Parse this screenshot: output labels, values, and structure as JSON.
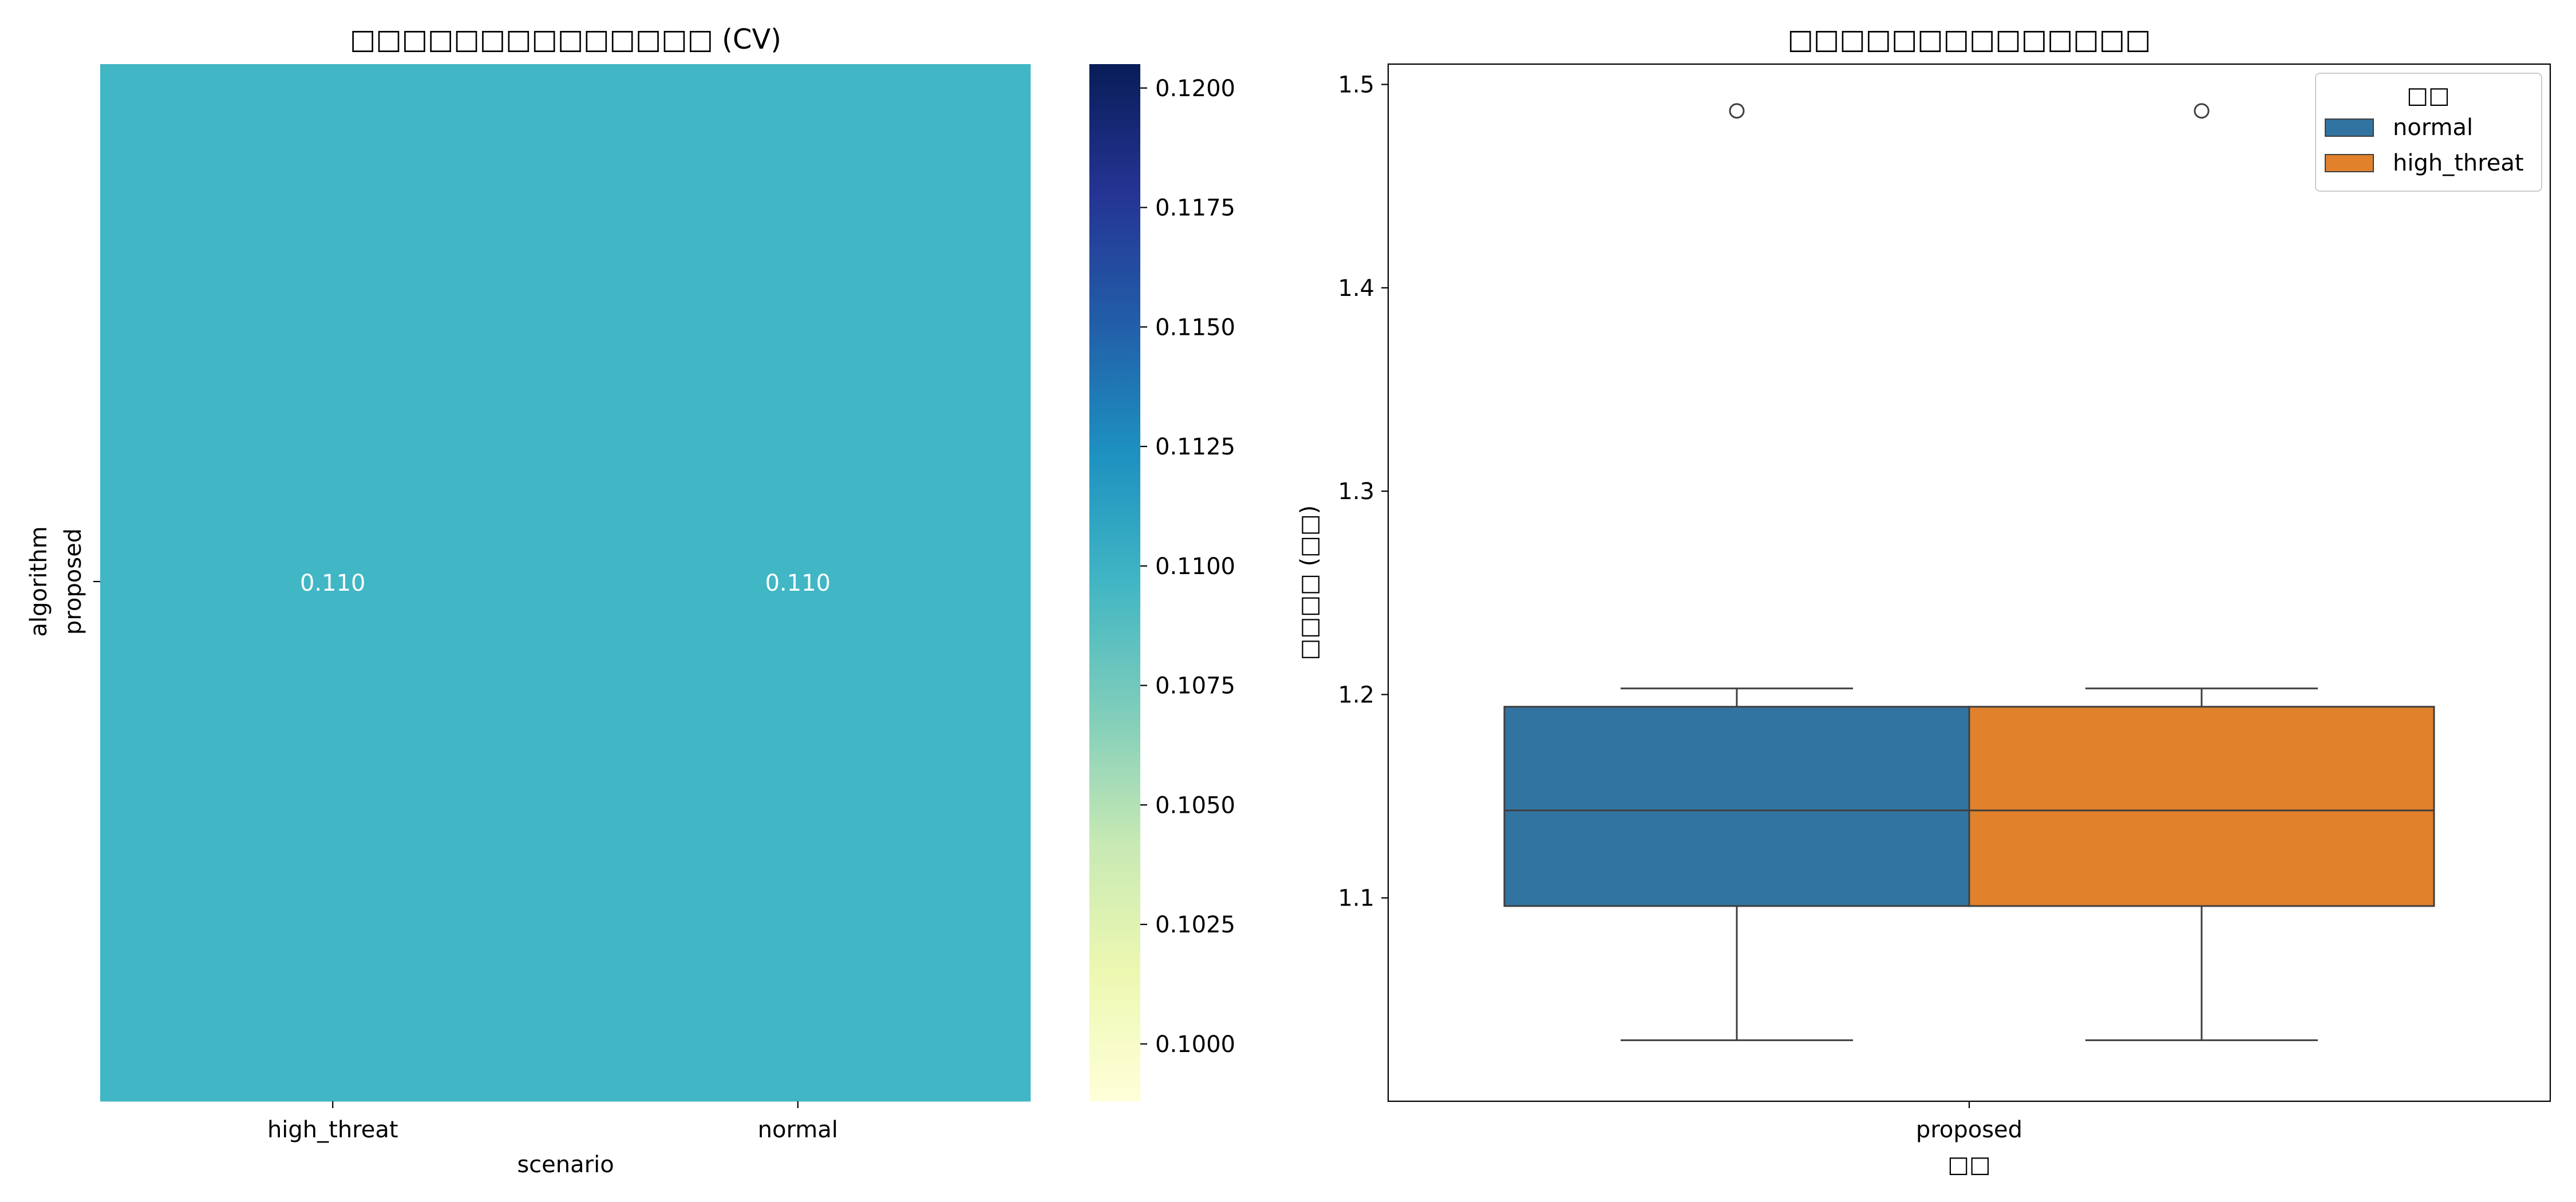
{
  "chart_data": [
    {
      "type": "heatmap",
      "title": "□□□□□□□□□□□□□□ (CV)",
      "xlabel": "scenario",
      "ylabel": "algorithm",
      "x_categories": [
        "high_threat",
        "normal"
      ],
      "y_categories": [
        "proposed"
      ],
      "values": [
        [
          0.11,
          0.11
        ]
      ],
      "annotations": [
        "0.110",
        "0.110"
      ],
      "colormap": "YlGnBu",
      "colorbar": {
        "range": [
          0.0988,
          0.1205
        ],
        "ticks": [
          0.1,
          0.1025,
          0.105,
          0.1075,
          0.11,
          0.1125,
          0.115,
          0.1175,
          0.12
        ],
        "tick_labels": [
          "0.1000",
          "0.1025",
          "0.1050",
          "0.1075",
          "0.1100",
          "0.1125",
          "0.1150",
          "0.1175",
          "0.1200"
        ]
      },
      "cell_color": "#41b6c4"
    },
    {
      "type": "box",
      "title": "□□□□□□□□□□□□□□",
      "xlabel": "□□",
      "ylabel": "□□□□ (□□)",
      "categories": [
        "proposed"
      ],
      "ylim": [
        1.0,
        1.51
      ],
      "yticks": [
        1.1,
        1.2,
        1.3,
        1.4,
        1.5
      ],
      "ytick_labels": [
        "1.1",
        "1.2",
        "1.3",
        "1.4",
        "1.5"
      ],
      "legend": {
        "title": "□□",
        "position": "top-right"
      },
      "series": [
        {
          "name": "normal",
          "color": "#3274a1",
          "stats": {
            "whisker_low": 1.03,
            "q1": 1.096,
            "median": 1.143,
            "q3": 1.194,
            "whisker_high": 1.203
          },
          "outliers": [
            1.487
          ]
        },
        {
          "name": "high_threat",
          "color": "#e1812c",
          "stats": {
            "whisker_low": 1.03,
            "q1": 1.096,
            "median": 1.143,
            "q3": 1.194,
            "whisker_high": 1.203
          },
          "outliers": [
            1.487
          ]
        }
      ]
    }
  ]
}
